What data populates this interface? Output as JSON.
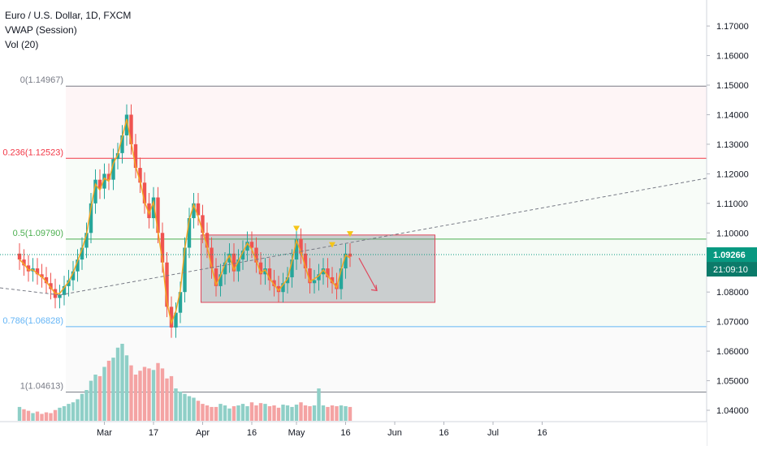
{
  "legend": {
    "symbol": "Euro / U.S. Dollar, 1D, FXCM",
    "indicator1": "VWAP (Session)",
    "indicator2": "Vol (20)"
  },
  "colors": {
    "up": "#26a69a",
    "down": "#ef5350",
    "up_vol": "#8fcfc7",
    "down_vol": "#f4a3a3",
    "vwap": "#f5a623",
    "fib_0": "#787b86",
    "fib_236": "#f23645",
    "fib_5": "#4caf50",
    "fib_786": "#64b5f6",
    "fib_1": "#787b86",
    "current": "#089981"
  },
  "chart_data": {
    "type": "candlestick",
    "symbol": "EUR/USD",
    "timeframe": "1D",
    "ylim": [
      1.035,
      1.18
    ],
    "price_axis_ticks": [
      "1.17000",
      "1.16000",
      "1.15000",
      "1.14000",
      "1.13000",
      "1.12000",
      "1.11000",
      "1.10000",
      "1.09000",
      "1.08000",
      "1.07000",
      "1.06000",
      "1.05000",
      "1.04000"
    ],
    "time_axis_ticks": [
      {
        "label": "Mar",
        "bar": 19
      },
      {
        "label": "17",
        "bar": 30
      },
      {
        "label": "Apr",
        "bar": 41
      },
      {
        "label": "16",
        "bar": 52
      },
      {
        "label": "May",
        "bar": 62
      },
      {
        "label": "16",
        "bar": 73
      },
      {
        "label": "Jun",
        "bar": 84
      },
      {
        "label": "16",
        "bar": 95
      },
      {
        "label": "Jul",
        "bar": 106
      },
      {
        "label": "16",
        "bar": 117
      }
    ],
    "current_price": "1.09266",
    "countdown": "21:09:10",
    "closes": [
      1.091,
      1.089,
      1.087,
      1.088,
      1.086,
      1.085,
      1.083,
      1.081,
      1.078,
      1.079,
      1.082,
      1.084,
      1.087,
      1.091,
      1.095,
      1.1,
      1.11,
      1.118,
      1.115,
      1.12,
      1.118,
      1.125,
      1.127,
      1.133,
      1.14,
      1.13,
      1.122,
      1.117,
      1.11,
      1.105,
      1.112,
      1.1,
      1.09,
      1.075,
      1.068,
      1.073,
      1.08,
      1.095,
      1.105,
      1.11,
      1.106,
      1.1,
      1.095,
      1.088,
      1.082,
      1.086,
      1.09,
      1.093,
      1.087,
      1.091,
      1.094,
      1.097,
      1.095,
      1.09,
      1.086,
      1.088,
      1.084,
      1.082,
      1.08,
      1.083,
      1.085,
      1.091,
      1.098,
      1.093,
      1.088,
      1.083,
      1.084,
      1.086,
      1.088,
      1.085,
      1.083,
      1.081,
      1.088,
      1.093,
      1.092
    ],
    "volume_ratio": [
      0.18,
      0.15,
      0.13,
      0.1,
      0.12,
      0.09,
      0.11,
      0.1,
      0.14,
      0.17,
      0.19,
      0.22,
      0.24,
      0.28,
      0.35,
      0.4,
      0.52,
      0.6,
      0.58,
      0.7,
      0.78,
      0.82,
      0.95,
      1.0,
      0.85,
      0.72,
      0.6,
      0.65,
      0.7,
      0.68,
      0.66,
      0.75,
      0.68,
      0.55,
      0.58,
      0.42,
      0.38,
      0.35,
      0.32,
      0.3,
      0.26,
      0.22,
      0.2,
      0.18,
      0.18,
      0.22,
      0.2,
      0.16,
      0.19,
      0.2,
      0.22,
      0.19,
      0.24,
      0.2,
      0.23,
      0.22,
      0.19,
      0.2,
      0.17,
      0.21,
      0.2,
      0.18,
      0.21,
      0.24,
      0.2,
      0.19,
      0.2,
      0.42,
      0.2,
      0.18,
      0.2,
      0.19,
      0.2,
      0.19,
      0.18
    ],
    "vwap": [
      1.091,
      1.0895,
      1.0875,
      1.0875,
      1.0862,
      1.0852,
      1.0835,
      1.0815,
      1.0795,
      1.0795,
      1.0815,
      1.0835,
      1.0865,
      1.0905,
      1.0945,
      1.0995,
      1.1085,
      1.1165,
      1.1145,
      1.1185,
      1.1175,
      1.1235,
      1.1265,
      1.1325,
      1.1385,
      1.1305,
      1.1225,
      1.1175,
      1.1105,
      1.1065,
      1.1105,
      1.1005,
      1.0905,
      1.0765,
      1.0695,
      1.0735,
      1.0805,
      1.0945,
      1.1045,
      1.1095,
      1.1055,
      1.1005,
      1.0955,
      1.0885,
      1.0825,
      1.0855,
      1.0895,
      1.0925,
      1.0875,
      1.0905,
      1.0935,
      1.0965,
      1.0945,
      1.0905,
      1.0865,
      1.0875,
      1.0845,
      1.0825,
      1.0805,
      1.0825,
      1.0845,
      1.0905,
      1.0975,
      1.0935,
      1.0885,
      1.0835,
      1.0845,
      1.0855,
      1.0875,
      1.0855,
      1.0835,
      1.0815,
      1.0875,
      1.0925,
      1.0915
    ],
    "fib_levels": [
      {
        "label": "0(1.14967)",
        "price": 1.14967,
        "color_key": "fib_0"
      },
      {
        "label": "0.236(1.12523)",
        "price": 1.12523,
        "color_key": "fib_236"
      },
      {
        "label": "0.5(1.09790)",
        "price": 1.0979,
        "color_key": "fib_5"
      },
      {
        "label": "0.786(1.06828)",
        "price": 1.06828,
        "color_key": "fib_786"
      },
      {
        "label": "1(1.04613)",
        "price": 1.04613,
        "color_key": "fib_1"
      }
    ],
    "range_box": {
      "bar_start": 41,
      "bar_end": 93,
      "top": 1.0993,
      "bottom": 1.0765
    }
  }
}
